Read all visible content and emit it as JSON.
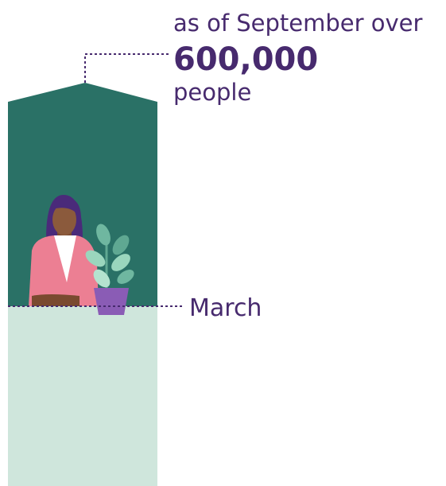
{
  "annotation": {
    "line1": "as of September over",
    "figure": "600,000",
    "line2": "people"
  },
  "marker": {
    "label": "March"
  }
}
